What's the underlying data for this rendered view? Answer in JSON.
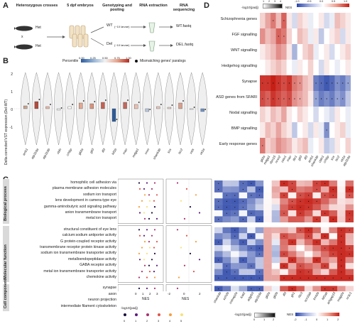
{
  "panel_labels": {
    "a": "A",
    "b": "B",
    "c": "C",
    "d": "D"
  },
  "panel_a": {
    "steps": [
      {
        "title": "Heterozygous crosses",
        "sub": ""
      },
      {
        "title": "5 dpf embryos",
        "sub": ""
      },
      {
        "title": "Genotyping and pooling",
        "sub": ""
      },
      {
        "title": "RNA extraction",
        "sub": ""
      },
      {
        "title": "RNA sequencing",
        "sub": ""
      }
    ],
    "het1": "Het",
    "het2": "Het",
    "cross": "x",
    "wt_label": "WT",
    "wt_note": "(~10 larvae)",
    "del_label": "Del",
    "del_note": "(~10 larvae)",
    "wt_out": "WT.fastq",
    "del_out": "DEL.fastq"
  },
  "panel_b": {
    "ylabel": "Delta corrected VST expression (Del-WT)",
    "legend_title": "Percentile",
    "legend_ticks": [
      "0.00",
      "0.25",
      "0.50",
      "0.75",
      "1.00"
    ],
    "legend_paralog": "Mismatching genes' paralogs",
    "yticks": [
      "2",
      "1",
      "0",
      "-1"
    ],
    "genes": [
      "arrb1",
      "atp1b3a",
      "atp1b3b",
      "cbln",
      "crhbp",
      "gli2a",
      "gli3",
      "ilf3",
      "kif1b",
      "mao",
      "mdga1",
      "nrxn",
      "shank3b",
      "sox",
      "tsc2",
      "vstx",
      "vti1a"
    ]
  },
  "panel_c": {
    "categories": [
      {
        "name": "Biological process",
        "terms": [
          "homophilic cell adhesion via",
          "plasma membrane adhesion molecules",
          "sodium ion transport",
          "lens development in camera-type eye",
          "gamma-aminobutyric acid signaling pathway",
          "anion transmembrane transport",
          "metal ion transport"
        ]
      },
      {
        "name": "Molecular function",
        "terms": [
          "structural constituent of eye lens",
          "calcium:sodium antiporter activity",
          "G protein-coupled receptor activity",
          "transmembrane receptor protein kinase activity",
          "sodium ion transmembrane transporter activity",
          "metalloendopeptidase activity",
          "GABA receptor activity",
          "metal ion transmembrane transporter activity",
          "chemokine activity"
        ]
      },
      {
        "name": "Cell component",
        "terms": [
          "synapse",
          "axon",
          "neuron projection",
          "intermediate filament cytoskeleton"
        ]
      }
    ],
    "xlabel": "NES",
    "xticks1": [
      "0",
      "1",
      "2",
      "3"
    ],
    "xticks2": [
      "-2",
      "0",
      "2"
    ],
    "legend_title": "-log10(padj)",
    "legend_ticks": [
      "0",
      "1",
      "2",
      "3",
      "4",
      "5"
    ],
    "genes": [
      "shank3b",
      "ezh2b",
      "cntnap2a",
      "lcat2",
      "adgrb3",
      "atp1b3a",
      "gli2a",
      "gli2b",
      "ilf3",
      "gh1",
      "rbc3",
      "scn1lab",
      "kmt2b",
      "kif1ab",
      "arhgap15",
      "magi2a",
      "nr3c1"
    ],
    "legend2_title": "-log10(padj)",
    "legend2_ticks": [
      "0",
      "1",
      "2"
    ],
    "legend3_title": "NES",
    "legend3_ticks": [
      "-2",
      "-1",
      "0",
      "1",
      "2"
    ]
  },
  "panel_d": {
    "legend1_title": "-log10(padj)",
    "legend1_ticks": [
      "1",
      "2",
      "3",
      "4"
    ],
    "legend2_title": "NES",
    "legend2_ticks": [
      "-1.0",
      "-0.5",
      "0.0",
      "0.5",
      "1.0"
    ],
    "rows": [
      "Schizophrenia genes",
      "FGF signalling",
      "WNT signalling",
      "Hedgehog signalling",
      "Synapse",
      "ASD genes from SFARI",
      "Nodal signalling",
      "BMP signalling",
      "Early response genes"
    ],
    "cols": [
      "gli2a",
      "mdga1",
      "rbm15",
      "nrxn2",
      "vstx1",
      "mao",
      "tbr1",
      "gli3",
      "ilf3",
      "arrb1",
      "shank3b",
      "cbln1",
      "crhbp",
      "sox",
      "tsc2",
      "vti1a",
      "atp1b3a"
    ]
  },
  "colors": {
    "red": "#c0392b",
    "blue": "#2c4f9e",
    "grid": "#e0e0e0",
    "cat": "#d9d9d9"
  }
}
